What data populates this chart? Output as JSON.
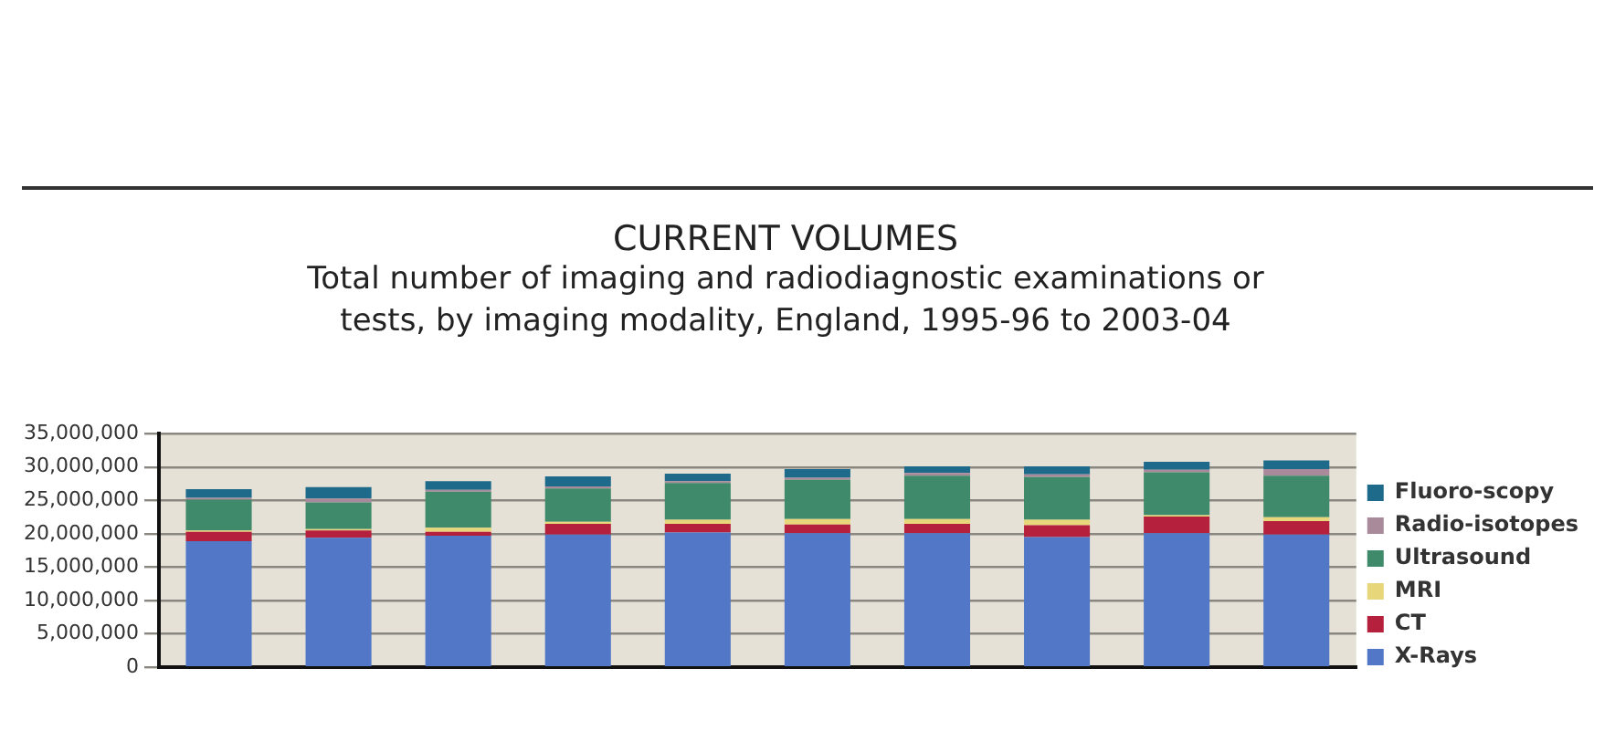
{
  "chart_data": {
    "type": "bar",
    "stacked": true,
    "title": "CURRENT VOLUMES",
    "subtitle": "Total number of imaging and radiodiagnostic examinations or tests, by imaging modality, England, 1995-96 to 2003-04",
    "categories": [
      null,
      null,
      null,
      null,
      null,
      null,
      null,
      null,
      null,
      null
    ],
    "series": [
      {
        "name": "X-Rays",
        "color": "#5177c6",
        "values": [
          18900000,
          19400000,
          19700000,
          19900000,
          20200000,
          20100000,
          20100000,
          19500000,
          20100000,
          19900000
        ]
      },
      {
        "name": "CT",
        "color": "#b5203c",
        "values": [
          1400000,
          1100000,
          600000,
          1600000,
          1300000,
          1300000,
          1400000,
          1800000,
          2500000,
          2000000
        ]
      },
      {
        "name": "MRI",
        "color": "#e8d67a",
        "values": [
          200000,
          200000,
          600000,
          300000,
          600000,
          800000,
          700000,
          800000,
          200000,
          600000
        ]
      },
      {
        "name": "Ultrasound",
        "color": "#3e8a6a",
        "values": [
          4600000,
          4000000,
          5400000,
          5000000,
          5500000,
          5900000,
          6500000,
          6400000,
          6400000,
          6200000
        ]
      },
      {
        "name": "Radio-isotopes",
        "color": "#a88a9a",
        "values": [
          300000,
          600000,
          300000,
          300000,
          300000,
          300000,
          400000,
          400000,
          400000,
          1000000
        ]
      },
      {
        "name": "Fluoro-scopy",
        "color": "#1d6a8a",
        "values": [
          1300000,
          1700000,
          1300000,
          1500000,
          1100000,
          1300000,
          1000000,
          1200000,
          1200000,
          1300000
        ]
      }
    ],
    "ylim": [
      0,
      35000000
    ],
    "yticks": [
      {
        "value": 0,
        "label": "0"
      },
      {
        "value": 5000000,
        "label": "5,000,000"
      },
      {
        "value": 10000000,
        "label": "10,000,000"
      },
      {
        "value": 15000000,
        "label": "15,000,000"
      },
      {
        "value": 20000000,
        "label": "20,000,000"
      },
      {
        "value": 25000000,
        "label": "25,000,000"
      },
      {
        "value": 30000000,
        "label": "30,000,000"
      },
      {
        "value": 35000000,
        "label": "35,000,000"
      }
    ],
    "grid": "y",
    "legend": "right"
  }
}
